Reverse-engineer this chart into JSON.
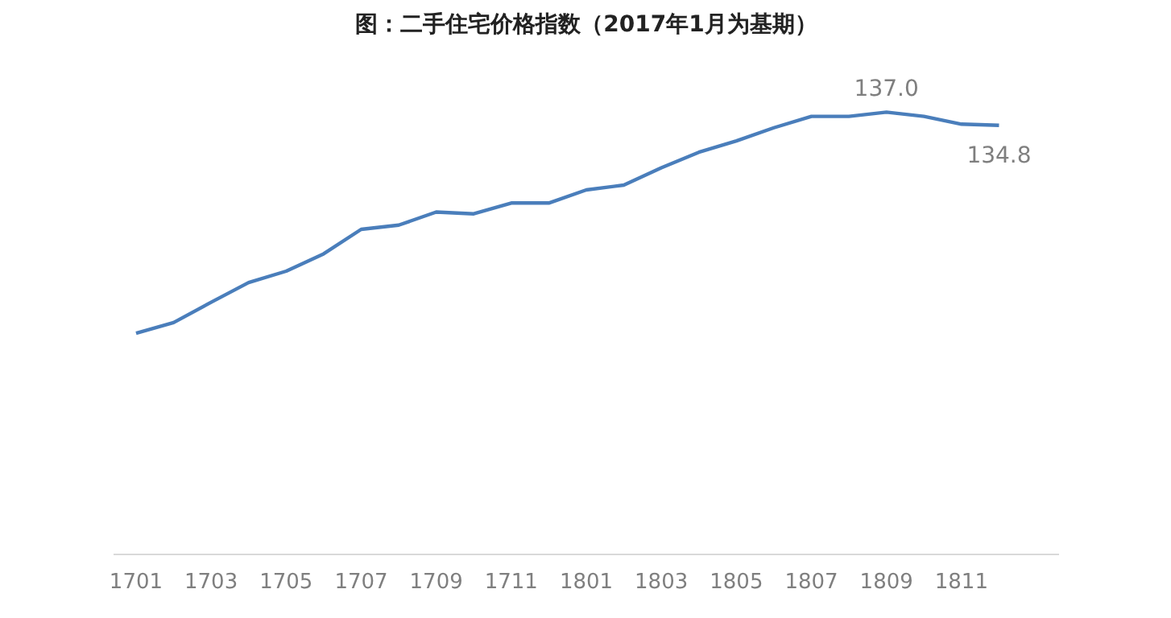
{
  "chart_data": {
    "type": "line",
    "title": "图：二手住宅价格指数（2017年1月为基期）",
    "categories": [
      "1701",
      null,
      "1703",
      null,
      "1705",
      null,
      "1707",
      null,
      "1709",
      null,
      "1711",
      null,
      "1801",
      null,
      "1803",
      null,
      "1805",
      null,
      "1807",
      null,
      "1809",
      null,
      "1811",
      null
    ],
    "series": [
      {
        "color": "#4a7ebb",
        "values": [
          100,
          101.8,
          105.2,
          108.5,
          110.4,
          113.3,
          117.4,
          118.1,
          120.3,
          120.0,
          121.8,
          121.8,
          124.0,
          124.8,
          127.7,
          130.3,
          132.2,
          134.4,
          136.3,
          136.3,
          137.0,
          136.3,
          135.0,
          134.8
        ],
        "value_labels": [
          null,
          null,
          null,
          null,
          null,
          null,
          null,
          null,
          null,
          null,
          null,
          null,
          null,
          null,
          null,
          null,
          null,
          null,
          null,
          null,
          "137.0",
          null,
          null,
          "134.8"
        ]
      }
    ],
    "marker": "none",
    "line_style": "solid"
  }
}
